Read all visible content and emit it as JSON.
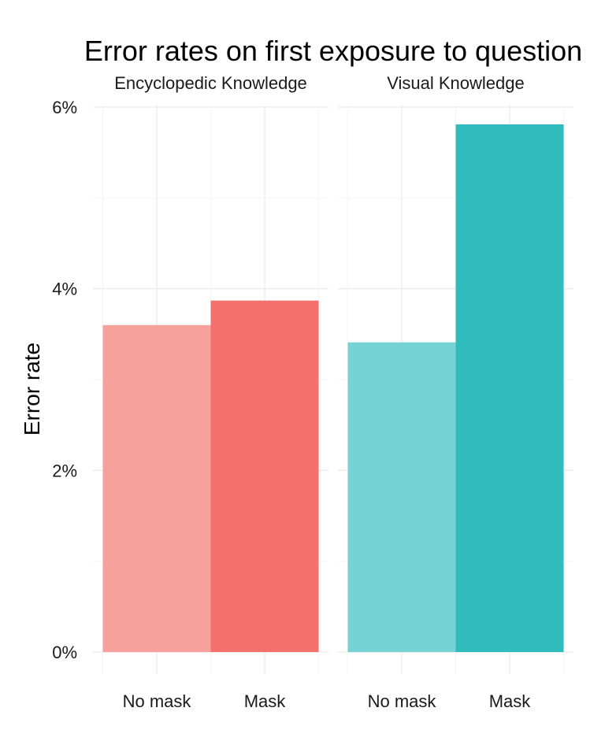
{
  "chart_data": {
    "type": "bar",
    "title": "Error rates on first exposure to question",
    "xlabel": "",
    "ylabel": "Error rate",
    "ylim": [
      0,
      0.06
    ],
    "y_ticks": [
      {
        "value": 0,
        "label": "0%"
      },
      {
        "value": 0.02,
        "label": "2%"
      },
      {
        "value": 0.04,
        "label": "4%"
      },
      {
        "value": 0.06,
        "label": "6%"
      }
    ],
    "grid": true,
    "legend": "none",
    "panels": [
      {
        "facet": "Encyclopedic Knowledge",
        "categories": [
          "No mask",
          "Mask"
        ],
        "values": [
          0.036,
          0.0387
        ],
        "colors": [
          "#f8a09c",
          "#f4706c"
        ]
      },
      {
        "facet": "Visual Knowledge",
        "categories": [
          "No mask",
          "Mask"
        ],
        "values": [
          0.0341,
          0.0581
        ],
        "colors": [
          "#76d2d4",
          "#30bbbd"
        ]
      }
    ]
  }
}
